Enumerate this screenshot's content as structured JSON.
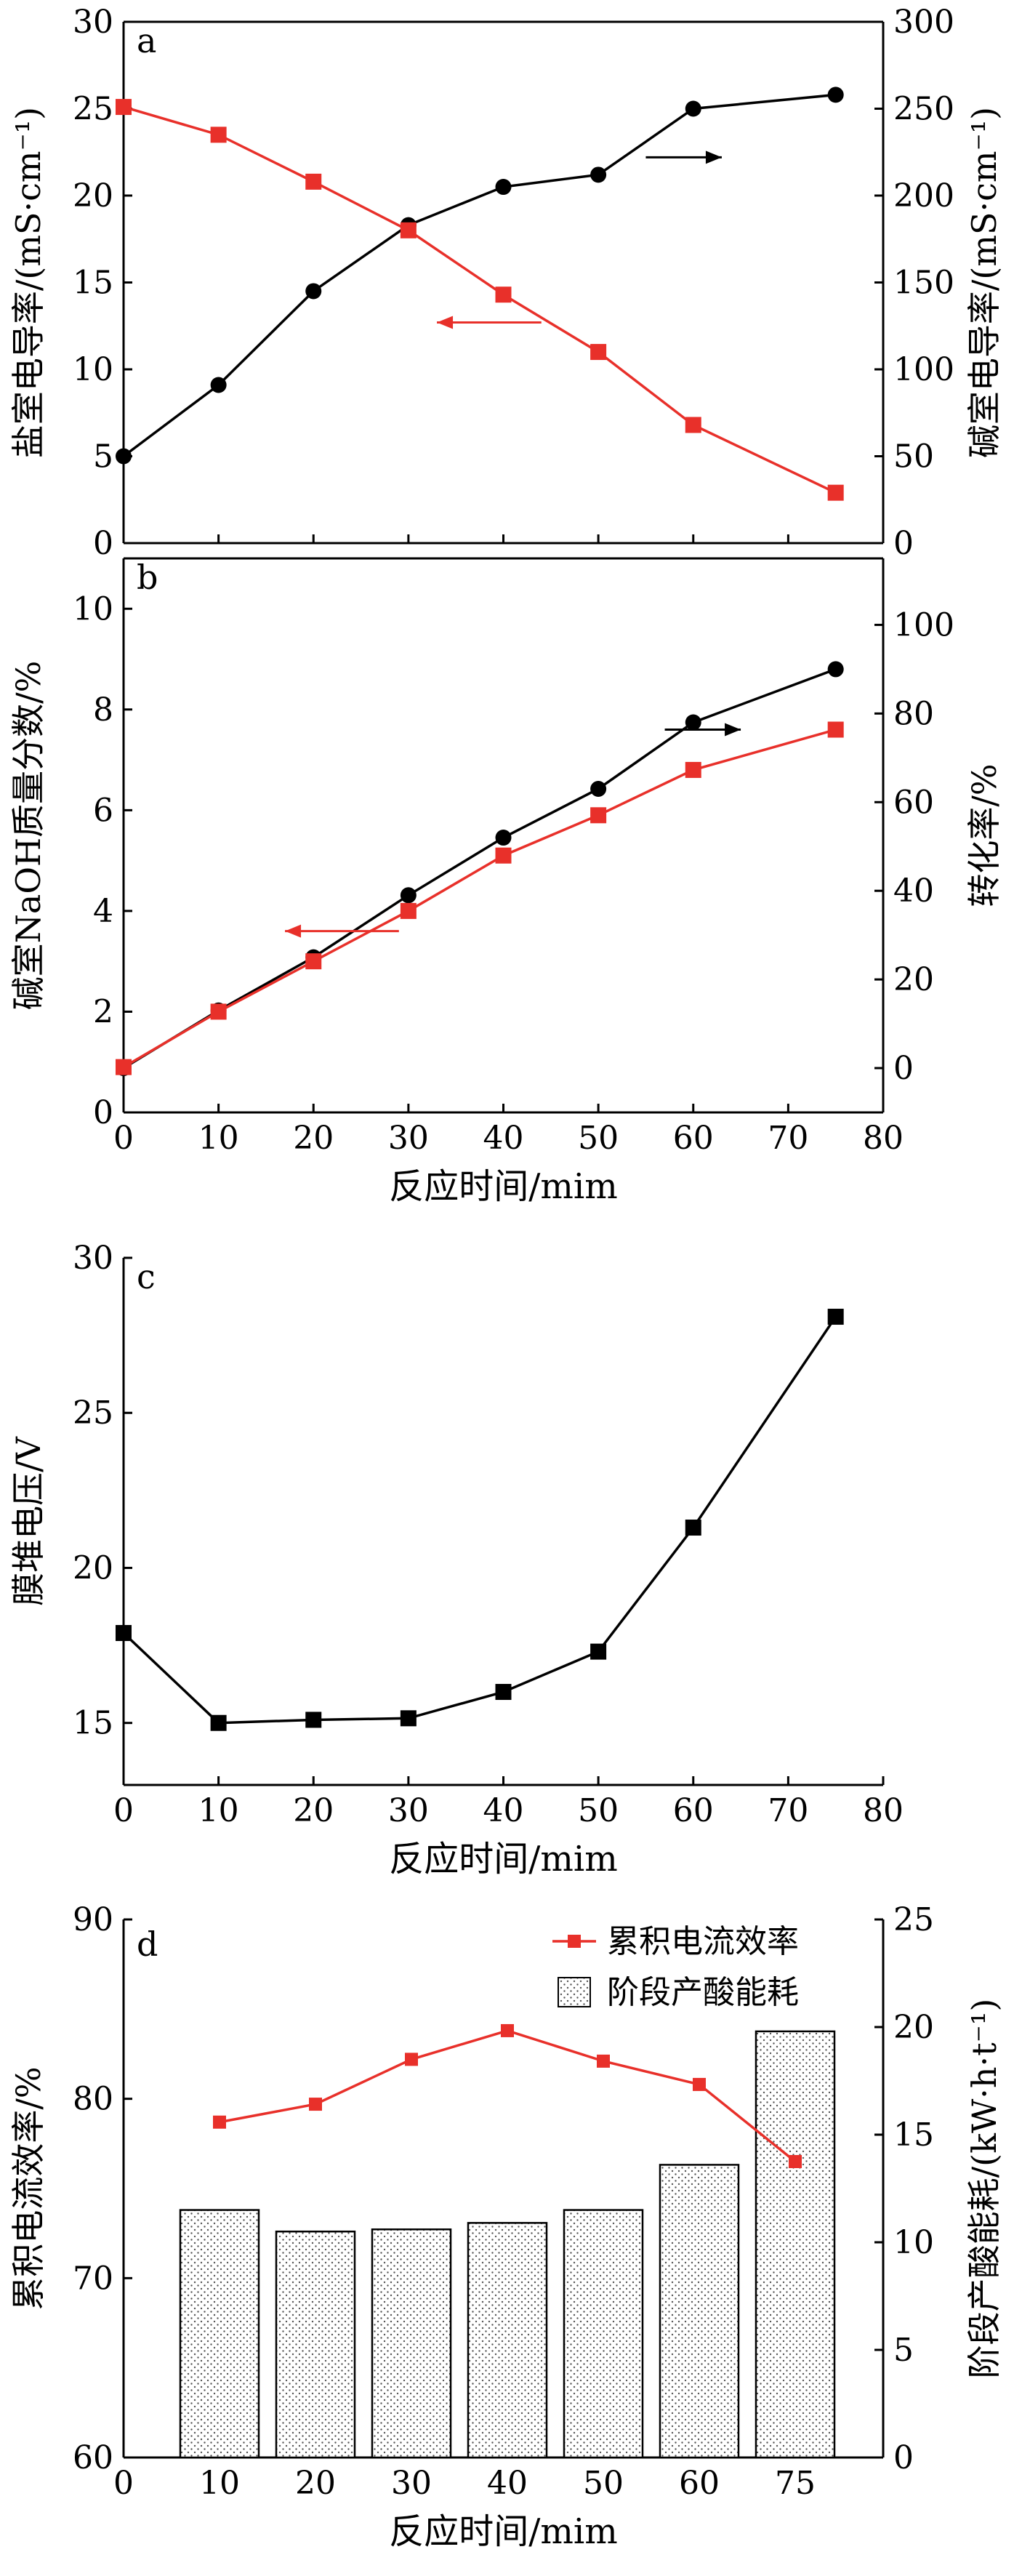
{
  "colors": {
    "black_series": "#000000",
    "red_series": "#e8302a"
  },
  "chart_data": [
    {
      "id": "a",
      "type": "line",
      "panel_label": "a",
      "xlabel": "",
      "xlim": [
        0,
        80
      ],
      "xticks": [
        0,
        10,
        20,
        30,
        40,
        50,
        60,
        70,
        80
      ],
      "show_x_ticklabels": false,
      "ylabel_left": "盐室电导率/(mS·cm⁻¹)",
      "ylim_left": [
        0,
        30
      ],
      "yticks_left": [
        0,
        5,
        10,
        15,
        20,
        25,
        30
      ],
      "ylabel_right": "碱室电导率/(mS·cm⁻¹)",
      "ylim_right": [
        0,
        300
      ],
      "yticks_right": [
        0,
        50,
        100,
        150,
        200,
        250,
        300
      ],
      "series": [
        {
          "axis": "right",
          "marker": "circle",
          "color": "#000000",
          "x": [
            0,
            10,
            20,
            30,
            40,
            50,
            60,
            75
          ],
          "values": [
            50,
            91,
            145,
            183,
            205,
            212,
            250,
            258
          ]
        },
        {
          "axis": "left",
          "marker": "square",
          "color": "#e8302a",
          "x": [
            0,
            10,
            20,
            30,
            40,
            50,
            60,
            75
          ],
          "values": [
            25.1,
            23.5,
            20.8,
            18.0,
            14.3,
            11.0,
            6.8,
            2.9
          ]
        }
      ],
      "annotations": [
        {
          "kind": "arrow",
          "direction": "right",
          "color": "#000000",
          "x": [
            55,
            63
          ],
          "y": 22.2,
          "axis": "left"
        },
        {
          "kind": "arrow",
          "direction": "left",
          "color": "#e8302a",
          "x": [
            33,
            44
          ],
          "y": 12.7,
          "axis": "left"
        }
      ]
    },
    {
      "id": "b",
      "type": "line",
      "panel_label": "b",
      "xlabel": "反应时间/mim",
      "xlim": [
        0,
        80
      ],
      "xticks": [
        0,
        10,
        20,
        30,
        40,
        50,
        60,
        70,
        80
      ],
      "show_x_ticklabels": true,
      "ylabel_left": "碱室NaOH质量分数/%",
      "ylim_left": [
        0,
        11
      ],
      "yticks_left": [
        0,
        2,
        4,
        6,
        8,
        10
      ],
      "ylabel_right": "转化率/%",
      "ylim_right": [
        -10,
        115
      ],
      "yticks_right": [
        0,
        20,
        40,
        60,
        80,
        100
      ],
      "series": [
        {
          "axis": "right",
          "marker": "circle",
          "color": "#000000",
          "x": [
            0,
            10,
            20,
            30,
            40,
            50,
            60,
            75
          ],
          "values": [
            0,
            13,
            25,
            39,
            52,
            63,
            78,
            90
          ]
        },
        {
          "axis": "left",
          "marker": "square",
          "color": "#e8302a",
          "x": [
            0,
            10,
            20,
            30,
            40,
            50,
            60,
            75
          ],
          "values": [
            0.9,
            2.0,
            3.0,
            4.0,
            5.1,
            5.9,
            6.8,
            7.6
          ]
        }
      ],
      "annotations": [
        {
          "kind": "arrow",
          "direction": "right",
          "color": "#000000",
          "x": [
            57,
            65
          ],
          "y": 7.6,
          "axis": "left"
        },
        {
          "kind": "arrow",
          "direction": "left",
          "color": "#e8302a",
          "x": [
            17,
            29
          ],
          "y": 3.6,
          "axis": "left"
        }
      ]
    },
    {
      "id": "c",
      "type": "line",
      "panel_label": "c",
      "xlabel": "反应时间/mim",
      "xlim": [
        0,
        80
      ],
      "xticks": [
        0,
        10,
        20,
        30,
        40,
        50,
        60,
        70,
        80
      ],
      "show_x_ticklabels": true,
      "ylabel_left": "膜堆电压/V",
      "ylim_left": [
        13,
        30
      ],
      "yticks_left": [
        15,
        20,
        25,
        30
      ],
      "series": [
        {
          "axis": "left",
          "marker": "square",
          "color": "#000000",
          "x": [
            0,
            10,
            20,
            30,
            40,
            50,
            60,
            75
          ],
          "values": [
            17.9,
            15.0,
            15.1,
            15.15,
            16.0,
            17.3,
            21.3,
            28.1
          ]
        }
      ]
    },
    {
      "id": "d",
      "type": "bar",
      "panel_label": "d",
      "xlabel": "反应时间/mim",
      "categories": [
        "10",
        "20",
        "30",
        "40",
        "50",
        "60",
        "75"
      ],
      "x_zero_label": "0",
      "ylabel_left": "累积电流效率/%",
      "ylim_left": [
        60,
        90
      ],
      "yticks_left": [
        60,
        70,
        80,
        90
      ],
      "ylabel_right": "阶段产酸能耗/(kW·h·t⁻¹)",
      "ylim_right": [
        0,
        25
      ],
      "yticks_right": [
        0,
        5,
        10,
        15,
        20,
        25
      ],
      "series": [
        {
          "name": "累积电流效率",
          "kind": "line",
          "axis": "left",
          "marker": "square",
          "color": "#e8302a",
          "values": [
            78.7,
            79.7,
            82.2,
            83.8,
            82.1,
            80.8,
            76.5
          ]
        },
        {
          "name": "阶段产酸能耗",
          "kind": "bar",
          "axis": "right",
          "fill": "dotted",
          "values": [
            11.5,
            10.5,
            10.6,
            10.9,
            11.5,
            13.6,
            19.8
          ]
        }
      ],
      "legend": {
        "position": "top-right"
      }
    }
  ]
}
